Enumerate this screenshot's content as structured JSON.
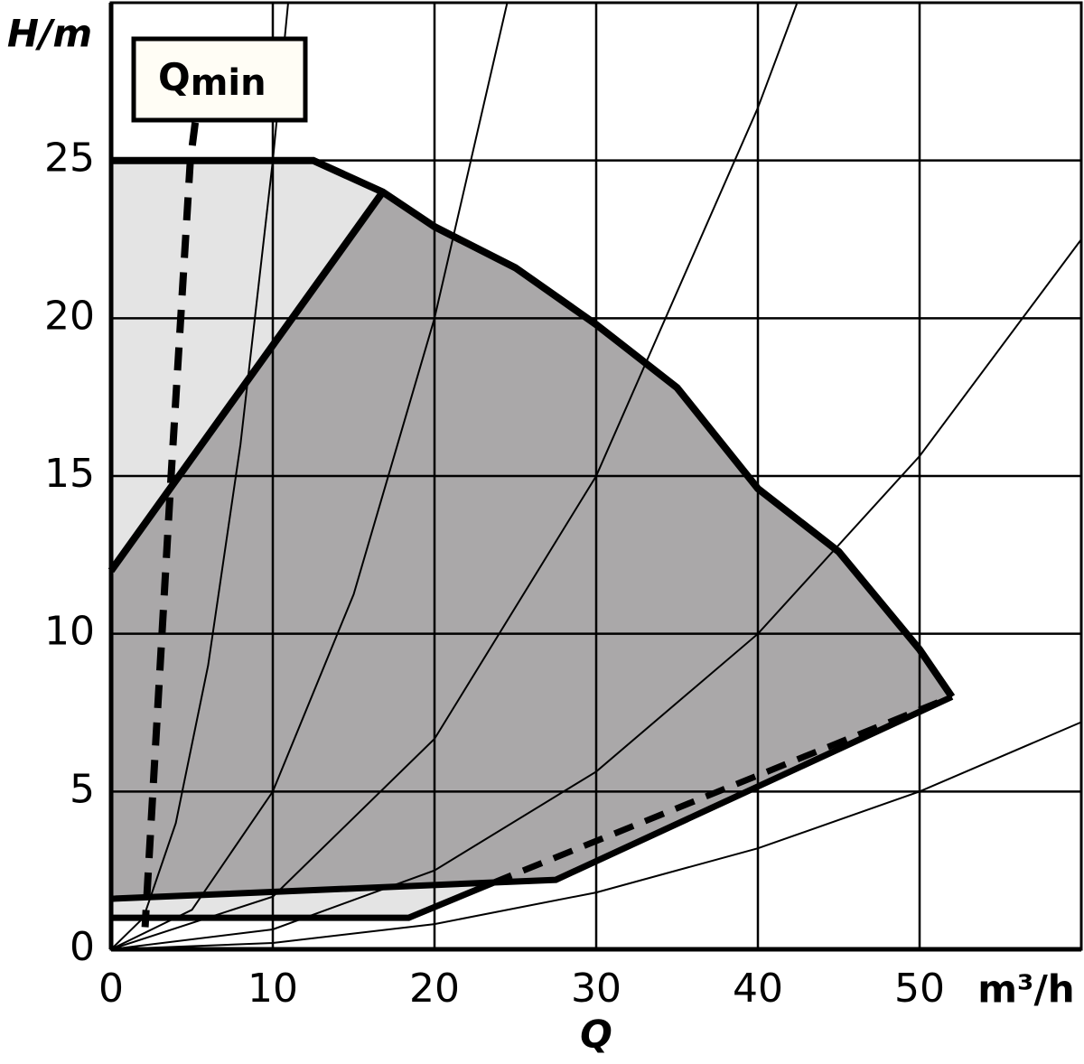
{
  "chart_data": {
    "type": "line",
    "y_label": "H/m",
    "x_unit": "m³/h",
    "x_label": "Q",
    "annotation": {
      "main": "Q",
      "sub": "min"
    },
    "xlim": [
      0,
      60
    ],
    "ylim": [
      0,
      30
    ],
    "xticks": [
      0,
      10,
      20,
      30,
      40,
      50
    ],
    "yticks": [
      0,
      5,
      10,
      15,
      20,
      25
    ],
    "grid": true,
    "grid_color": "#000000",
    "series": [
      {
        "x": [
          0,
          18.4,
          23.6,
          51.5,
          52,
          50,
          45,
          40,
          35,
          30,
          25,
          20,
          16.8,
          12.5,
          0
        ],
        "y": [
          1,
          1,
          2.1,
          7.9,
          8,
          9.5,
          12.6,
          14.6,
          17.8,
          19.8,
          21.6,
          22.9,
          24,
          25,
          25
        ],
        "fill": "#e4e4e4"
      },
      {
        "x": [
          0,
          16.8,
          20,
          25,
          30,
          35,
          40,
          45,
          50,
          52,
          27.5,
          0
        ],
        "y": [
          12,
          24,
          22.9,
          21.6,
          19.8,
          17.8,
          14.6,
          12.6,
          9.5,
          8,
          2.2,
          1.6
        ],
        "fill": "#aaa8a9"
      },
      {
        "x": [
          0,
          2,
          4,
          6,
          8,
          10,
          10.95
        ],
        "y": [
          0,
          1,
          4,
          9,
          16,
          25,
          30
        ],
        "color": "#000000",
        "width": 2
      },
      {
        "x": [
          0,
          5,
          10,
          15,
          20,
          24.5
        ],
        "y": [
          0,
          1.25,
          5,
          11.25,
          20,
          30
        ],
        "color": "#000000",
        "width": 2
      },
      {
        "x": [
          0,
          10,
          20,
          30,
          40,
          42.4
        ],
        "y": [
          0,
          1.67,
          6.67,
          15,
          26.67,
          29.96
        ],
        "color": "#000000",
        "width": 2
      },
      {
        "x": [
          0,
          10,
          20,
          30,
          40,
          50,
          60
        ],
        "y": [
          0,
          0.63,
          2.5,
          5.63,
          10,
          15.63,
          22.5
        ],
        "color": "#000000",
        "width": 2
      },
      {
        "x": [
          0,
          10,
          20,
          30,
          40,
          50,
          60
        ],
        "y": [
          0,
          0.2,
          0.8,
          1.8,
          3.2,
          5,
          7.2
        ],
        "color": "#000000",
        "width": 2
      },
      {
        "x": [
          0,
          12.5,
          16.8,
          20,
          25,
          30,
          35,
          40,
          45,
          50,
          52
        ],
        "y": [
          25,
          25,
          24,
          22.9,
          21.6,
          19.8,
          17.8,
          14.6,
          12.6,
          9.5,
          8
        ],
        "color": "#000000",
        "width": 8
      },
      {
        "x": [
          0,
          16.8
        ],
        "y": [
          12,
          24
        ],
        "color": "#000000",
        "width": 8
      },
      {
        "x": [
          0,
          27.5,
          52
        ],
        "y": [
          1.6,
          2.2,
          8
        ],
        "color": "#000000",
        "width": 7
      },
      {
        "x": [
          0,
          18.4,
          23.6
        ],
        "y": [
          1,
          1,
          2.1
        ],
        "color": "#000000",
        "width": 7
      },
      {
        "x": [
          23.6,
          51.5
        ],
        "y": [
          2.1,
          7.9
        ],
        "color": "#000000",
        "width": 7,
        "dash": true
      },
      {
        "x": [
          5.2,
          4.9,
          3.7,
          2.1
        ],
        "y": [
          26.2,
          25,
          14.9,
          0.7
        ],
        "color": "#000000",
        "width": 8,
        "dash": true
      }
    ]
  }
}
